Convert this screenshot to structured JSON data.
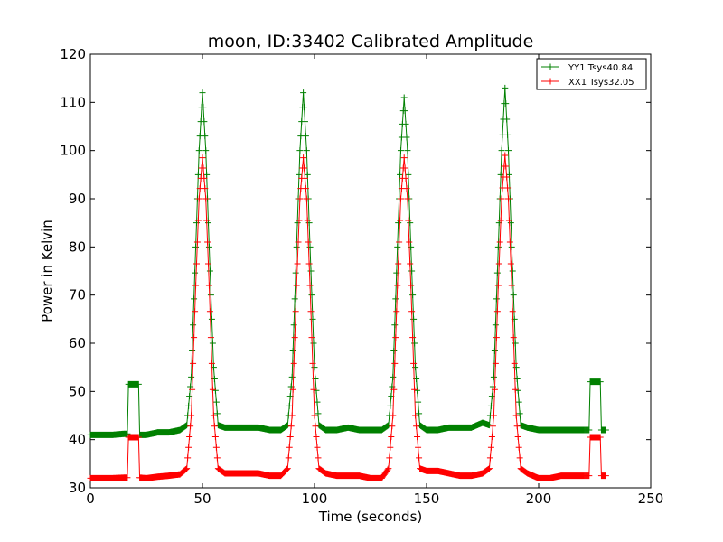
{
  "chart_data": {
    "type": "line",
    "title": "moon, ID:33402 Calibrated Amplitude",
    "xlabel": "Time (seconds)",
    "ylabel": "Power in Kelvin",
    "xlim": [
      0,
      250
    ],
    "ylim": [
      30,
      120
    ],
    "xticks": [
      "0",
      "50",
      "100",
      "150",
      "200",
      "250"
    ],
    "yticks": [
      "30",
      "40",
      "50",
      "60",
      "70",
      "80",
      "90",
      "100",
      "110",
      "120"
    ],
    "grid": false,
    "legend_position": "top-right",
    "marker": "+",
    "series": [
      {
        "name": "YY1 Tsys40.84",
        "color": "#008000",
        "x": [
          0,
          5,
          10,
          15,
          16.5,
          17,
          18,
          20,
          21.5,
          22,
          25,
          30,
          35,
          40,
          43,
          45,
          47,
          48.5,
          50,
          51.5,
          53,
          55,
          57,
          60,
          65,
          70,
          75,
          80,
          85,
          88,
          90,
          92,
          93.5,
          95,
          96.5,
          98,
          100,
          102,
          105,
          110,
          115,
          120,
          125,
          130,
          133,
          135,
          137,
          138.5,
          140,
          141.5,
          143,
          145,
          147,
          150,
          155,
          160,
          165,
          170,
          175,
          178,
          180,
          182,
          183.5,
          185,
          186.5,
          188,
          190,
          192,
          195,
          200,
          205,
          210,
          215,
          220,
          222.5,
          223,
          224,
          226,
          227.5,
          228,
          230
        ],
        "y": [
          41,
          41,
          41,
          41.2,
          41.2,
          51.5,
          51.5,
          51.5,
          51.5,
          41,
          41,
          41.5,
          41.5,
          42,
          43,
          53,
          80,
          100,
          112,
          100,
          80,
          55,
          43,
          42.5,
          42.5,
          42.5,
          42.5,
          42,
          42,
          43,
          53,
          80,
          100,
          112,
          100,
          80,
          55,
          43,
          42,
          42,
          42.5,
          42,
          42,
          42,
          43,
          53,
          80,
          100,
          111,
          100,
          80,
          55,
          43,
          42,
          42,
          42.5,
          42.5,
          42.5,
          43.5,
          43,
          53,
          80,
          100,
          113,
          100,
          80,
          55,
          43,
          42.5,
          42,
          42,
          42,
          42,
          42,
          42,
          52,
          52,
          52,
          52,
          42,
          42
        ]
      },
      {
        "name": "XX1 Tsys32.05",
        "color": "#ff0000",
        "x": [
          0,
          5,
          10,
          15,
          16.5,
          17,
          18,
          20,
          21.5,
          22,
          25,
          30,
          35,
          40,
          43,
          45,
          47,
          48.5,
          50,
          51.5,
          53,
          55,
          57,
          60,
          65,
          70,
          75,
          80,
          85,
          88,
          90,
          92,
          93.5,
          95,
          96.5,
          98,
          100,
          102,
          105,
          110,
          115,
          120,
          125,
          130,
          133,
          135,
          137,
          138.5,
          140,
          141.5,
          143,
          145,
          147,
          150,
          155,
          160,
          165,
          170,
          175,
          178,
          180,
          182,
          183.5,
          185,
          186.5,
          188,
          190,
          192,
          195,
          200,
          205,
          210,
          215,
          220,
          222.5,
          223,
          224,
          226,
          227.5,
          228,
          230
        ],
        "y": [
          32,
          32,
          32,
          32.1,
          32.1,
          40.5,
          40.5,
          40.5,
          40.5,
          32.1,
          32,
          32.3,
          32.5,
          32.8,
          34,
          45,
          72,
          90,
          98.5,
          90,
          72,
          45,
          34,
          33,
          33,
          33,
          33,
          32.5,
          32.5,
          34,
          45,
          72,
          90,
          98.5,
          90,
          72,
          45,
          34,
          33,
          32.5,
          32.5,
          32.5,
          32,
          32,
          34,
          45,
          72,
          90,
          98.5,
          90,
          72,
          45,
          34,
          33.5,
          33.5,
          33,
          32.5,
          32.5,
          33,
          34,
          45,
          72,
          90,
          99,
          90,
          72,
          45,
          34,
          33,
          32,
          32,
          32.5,
          32.5,
          32.5,
          32.5,
          40.5,
          40.5,
          40.5,
          40.5,
          32.5,
          32.5
        ]
      }
    ]
  }
}
